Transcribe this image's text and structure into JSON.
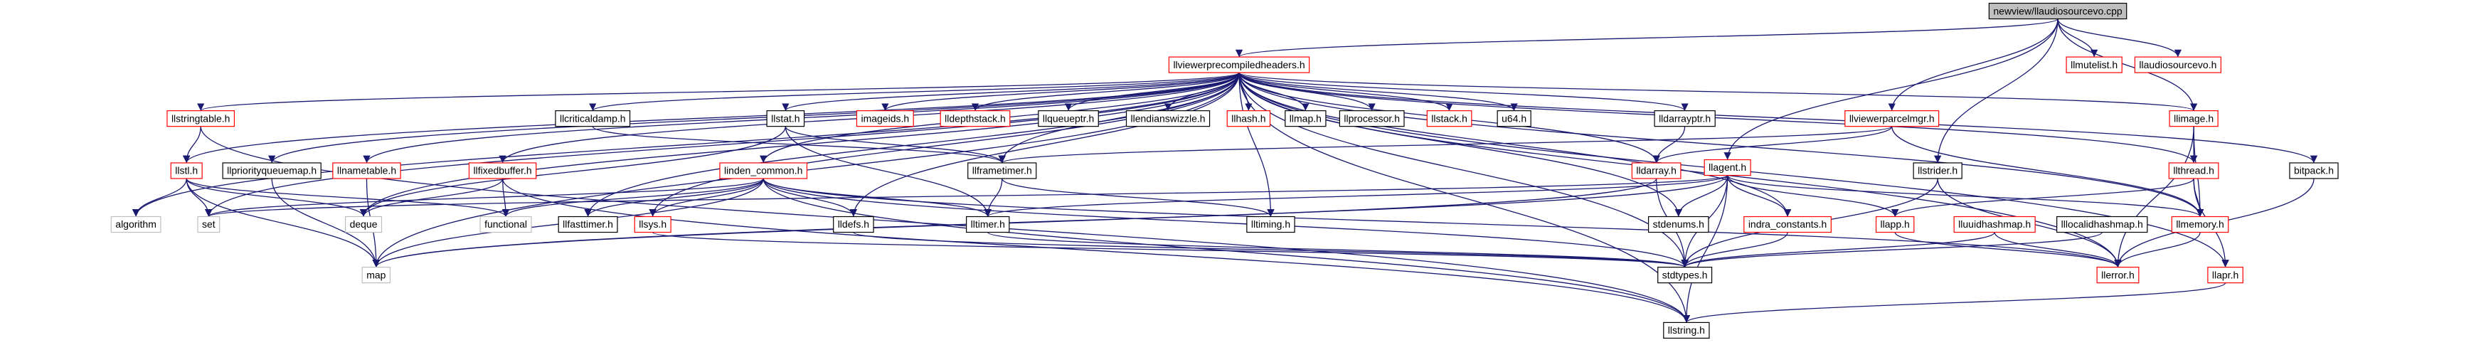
{
  "nodes": [
    {
      "label": "newview/llaudiosourcevo.cpp"
    },
    {
      "label": "llviewerprecompiledheaders.h"
    },
    {
      "label": "llmutelist.h"
    },
    {
      "label": "llaudiosourcevo.h"
    },
    {
      "label": "llstringtable.h"
    },
    {
      "label": "llcriticaldamp.h"
    },
    {
      "label": "llstat.h"
    },
    {
      "label": "imageids.h"
    },
    {
      "label": "lldepthstack.h"
    },
    {
      "label": "llqueueptr.h"
    },
    {
      "label": "llendianswizzle.h"
    },
    {
      "label": "llhash.h"
    },
    {
      "label": "llmap.h"
    },
    {
      "label": "llprocessor.h"
    },
    {
      "label": "llstack.h"
    },
    {
      "label": "u64.h"
    },
    {
      "label": "lldarrayptr.h"
    },
    {
      "label": "llviewerparcelmgr.h"
    },
    {
      "label": "llimage.h"
    },
    {
      "label": "llstl.h"
    },
    {
      "label": "llpriorityqueuemap.h"
    },
    {
      "label": "llnametable.h"
    },
    {
      "label": "llfixedbuffer.h"
    },
    {
      "label": "linden_common.h"
    },
    {
      "label": "llframetimer.h"
    },
    {
      "label": "lldarray.h"
    },
    {
      "label": "llagent.h"
    },
    {
      "label": "llstrider.h"
    },
    {
      "label": "llthread.h"
    },
    {
      "label": "bitpack.h"
    },
    {
      "label": "algorithm"
    },
    {
      "label": "set"
    },
    {
      "label": "deque"
    },
    {
      "label": "functional"
    },
    {
      "label": "llfasttimer.h"
    },
    {
      "label": "llsys.h"
    },
    {
      "label": "lldefs.h"
    },
    {
      "label": "lltimer.h"
    },
    {
      "label": "lltiming.h"
    },
    {
      "label": "stdenums.h"
    },
    {
      "label": "indra_constants.h"
    },
    {
      "label": "llapp.h"
    },
    {
      "label": "lluuidhashmap.h"
    },
    {
      "label": "lllocalidhashmap.h"
    },
    {
      "label": "llmemory.h"
    },
    {
      "label": "map"
    },
    {
      "label": "stdtypes.h"
    },
    {
      "label": "llerror.h"
    },
    {
      "label": "llapr.h"
    },
    {
      "label": "llstring.h"
    }
  ]
}
